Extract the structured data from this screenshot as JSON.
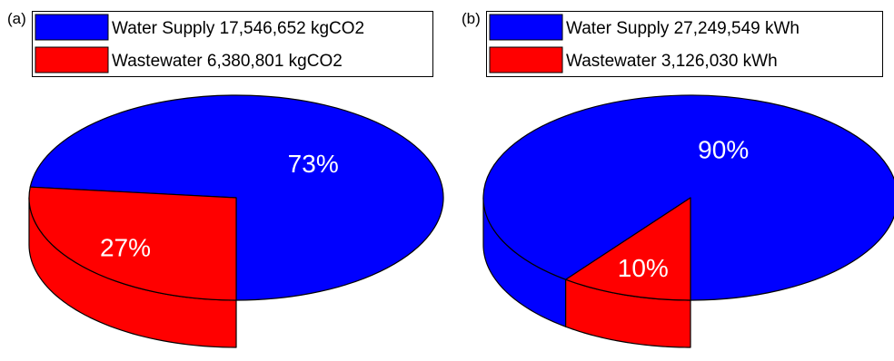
{
  "chart_data": [
    {
      "type": "pie",
      "panel_label": "(a)",
      "categories": [
        "Water Supply",
        "Wastewater"
      ],
      "values": [
        17546652,
        6380801
      ],
      "unit": "kgCO2",
      "legend": [
        "Water Supply 17,546,652 kgCO2",
        "Wastewater 6,380,801 kgCO2"
      ],
      "slice_labels": [
        "73%",
        "27%"
      ],
      "colors": [
        "#0000ff",
        "#ff0000"
      ],
      "style": "3d",
      "legend_position": "top-left"
    },
    {
      "type": "pie",
      "panel_label": "(b)",
      "categories": [
        "Water Supply",
        "Wastewater"
      ],
      "values": [
        27249549,
        3126030
      ],
      "unit": "kWh",
      "legend": [
        "Water Supply 27,249,549 kWh",
        "Wastewater 3,126,030 kWh"
      ],
      "slice_labels": [
        "90%",
        "10%"
      ],
      "colors": [
        "#0000ff",
        "#ff0000"
      ],
      "style": "3d",
      "legend_position": "top-left"
    }
  ]
}
